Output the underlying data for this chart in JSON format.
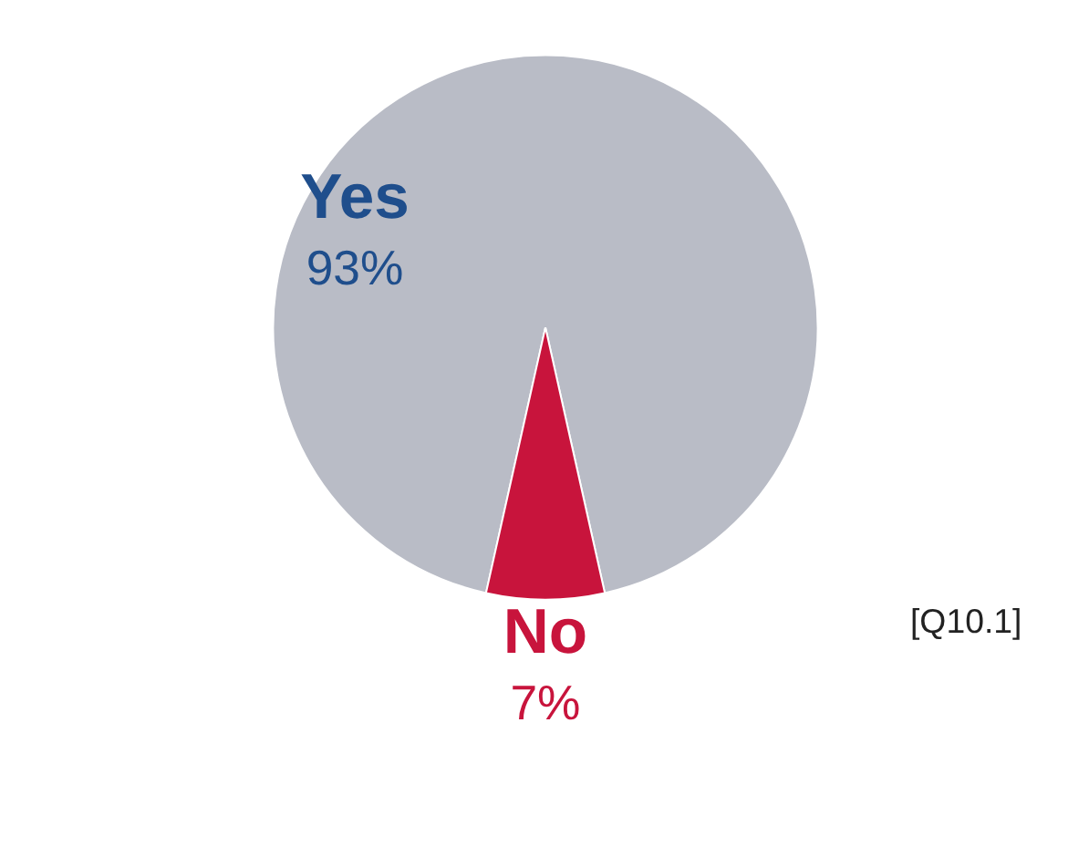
{
  "chart_data": {
    "type": "pie",
    "categories": [
      "Yes",
      "No"
    ],
    "values": [
      93,
      7
    ],
    "colors": [
      "#b9bcc6",
      "#c8143c"
    ],
    "value_labels": [
      "93%",
      "7%"
    ],
    "annotations": [
      "[Q10.1]"
    ]
  }
}
